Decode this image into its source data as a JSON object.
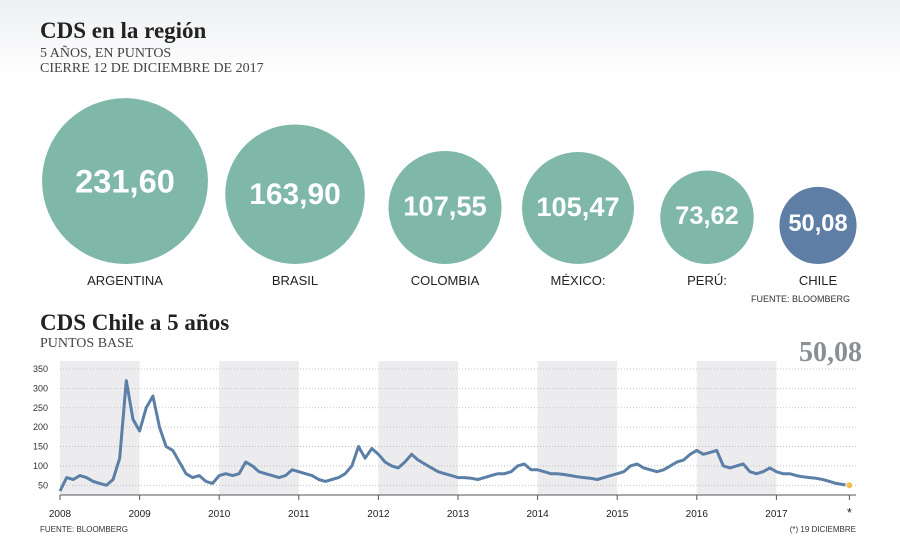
{
  "chart_data": [
    {
      "type": "bubble",
      "title": "CDS en la región",
      "subtitle": [
        "5 AÑOS, EN PUNTOS",
        "CIERRE 12 DE DICIEMBRE DE 2017"
      ],
      "categories": [
        "ARGENTINA",
        "BRASIL",
        "COLOMBIA",
        "MÉXICO:",
        "PERÚ:",
        "CHILE"
      ],
      "values": [
        231.6,
        163.9,
        107.55,
        105.47,
        73.62,
        50.08
      ],
      "value_labels": [
        "231,60",
        "163,90",
        "107,55",
        "105,47",
        "73,62",
        "50,08"
      ],
      "colors": [
        "#7fb8a8",
        "#7fb8a8",
        "#7fb8a8",
        "#7fb8a8",
        "#7fb8a8",
        "#5e7ea6"
      ],
      "source": "FUENTE: BLOOMBERG"
    },
    {
      "type": "line",
      "title": "CDS Chile a 5 años",
      "subtitle": "PUNTOS BASE",
      "x": [
        2008,
        2008.083,
        2008.167,
        2008.25,
        2008.333,
        2008.417,
        2008.5,
        2008.583,
        2008.667,
        2008.75,
        2008.833,
        2008.917,
        2009,
        2009.083,
        2009.167,
        2009.25,
        2009.333,
        2009.417,
        2009.5,
        2009.583,
        2009.667,
        2009.75,
        2009.833,
        2009.917,
        2010,
        2010.083,
        2010.167,
        2010.25,
        2010.333,
        2010.417,
        2010.5,
        2010.583,
        2010.667,
        2010.75,
        2010.833,
        2010.917,
        2011,
        2011.083,
        2011.167,
        2011.25,
        2011.333,
        2011.417,
        2011.5,
        2011.583,
        2011.667,
        2011.75,
        2011.833,
        2011.917,
        2012,
        2012.083,
        2012.167,
        2012.25,
        2012.333,
        2012.417,
        2012.5,
        2012.583,
        2012.667,
        2012.75,
        2012.833,
        2012.917,
        2013,
        2013.083,
        2013.167,
        2013.25,
        2013.333,
        2013.417,
        2013.5,
        2013.583,
        2013.667,
        2013.75,
        2013.833,
        2013.917,
        2014,
        2014.083,
        2014.167,
        2014.25,
        2014.333,
        2014.417,
        2014.5,
        2014.583,
        2014.667,
        2014.75,
        2014.833,
        2014.917,
        2015,
        2015.083,
        2015.167,
        2015.25,
        2015.333,
        2015.417,
        2015.5,
        2015.583,
        2015.667,
        2015.75,
        2015.833,
        2015.917,
        2016,
        2016.083,
        2016.167,
        2016.25,
        2016.333,
        2016.417,
        2016.5,
        2016.583,
        2016.667,
        2016.75,
        2016.833,
        2016.917,
        2017,
        2017.083,
        2017.167,
        2017.25,
        2017.333,
        2017.417,
        2017.5,
        2017.583,
        2017.667,
        2017.75,
        2017.833,
        2017.917
      ],
      "series": [
        {
          "color": "#5b7fa6",
          "values": [
            35,
            70,
            65,
            75,
            70,
            60,
            55,
            50,
            65,
            120,
            320,
            220,
            190,
            250,
            280,
            200,
            150,
            140,
            110,
            80,
            70,
            75,
            60,
            55,
            75,
            80,
            75,
            80,
            110,
            100,
            85,
            80,
            75,
            70,
            75,
            90,
            85,
            80,
            75,
            65,
            60,
            65,
            70,
            80,
            100,
            150,
            120,
            145,
            130,
            110,
            100,
            95,
            110,
            130,
            115,
            105,
            95,
            85,
            80,
            75,
            70,
            70,
            68,
            65,
            70,
            75,
            80,
            80,
            85,
            100,
            105,
            90,
            90,
            85,
            80,
            80,
            78,
            75,
            72,
            70,
            68,
            65,
            70,
            75,
            80,
            85,
            100,
            105,
            95,
            90,
            85,
            90,
            100,
            110,
            115,
            130,
            140,
            130,
            135,
            140,
            100,
            95,
            100,
            105,
            85,
            80,
            85,
            95,
            85,
            80,
            80,
            75,
            72,
            70,
            68,
            65,
            60,
            55,
            52,
            50.08
          ],
          "value_labels": [
            null,
            null,
            null,
            null,
            null,
            null,
            null,
            null,
            null,
            null,
            null,
            null,
            null,
            null,
            null,
            null,
            null,
            null,
            null,
            null,
            null,
            null,
            null,
            null,
            null,
            null,
            null,
            null,
            null,
            null,
            null,
            null,
            null,
            null,
            null,
            null,
            null,
            null,
            null,
            null,
            null,
            null,
            null,
            null,
            null,
            null,
            null,
            null,
            null,
            null,
            null,
            null,
            null,
            null,
            null,
            null,
            null,
            null,
            null,
            null,
            null,
            null,
            null,
            null,
            null,
            null,
            null,
            null,
            null,
            null,
            null,
            null,
            null,
            null,
            null,
            null,
            null,
            null,
            null,
            null,
            null,
            null,
            null,
            null,
            null,
            null,
            null,
            null,
            null,
            null,
            null,
            null,
            null,
            null,
            null,
            null,
            null,
            null,
            null,
            null,
            null,
            null,
            null,
            null,
            null,
            null,
            null,
            null,
            null,
            null,
            null,
            null,
            null,
            null,
            null,
            null,
            null,
            null,
            null,
            "50,08"
          ]
        }
      ],
      "end_marker_color": "#f2c14e",
      "xlim": [
        2008,
        2018
      ],
      "xticks": [
        2008,
        2009,
        2010,
        2011,
        2012,
        2013,
        2014,
        2015,
        2016,
        2017,
        {
          "value": 2017.917,
          "label": "*"
        }
      ],
      "ylim": [
        25,
        350
      ],
      "yticks": [
        50,
        100,
        150,
        200,
        250,
        300,
        350
      ],
      "grid": true,
      "source": "FUENTE: BLOOMBERG",
      "note": "(*) 19 DICIEMBRE"
    }
  ]
}
